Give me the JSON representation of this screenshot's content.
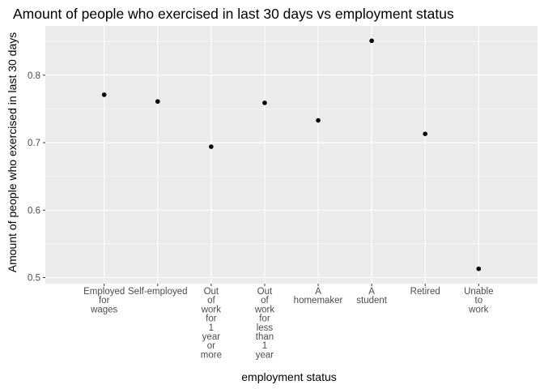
{
  "chart_data": {
    "type": "scatter",
    "title": "Amount of people who exercised in last 30 days vs employment status",
    "xlabel": "employment status",
    "ylabel": "Amount of people who exercised in last 30 days",
    "categories": [
      "Employed\nfor\nwages",
      "Self-employed",
      "Out\nof\nwork\nfor\n1\nyear\nor\nmore",
      "Out\nof\nwork\nfor\nless\nthan\n1\nyear",
      "A\nhomemaker",
      "A\nstudent",
      "Retired",
      "Unable\nto\nwork"
    ],
    "values": [
      0.771,
      0.761,
      0.694,
      0.759,
      0.733,
      0.851,
      0.713,
      0.513
    ],
    "ylim": [
      0.491,
      0.873
    ],
    "yticks": [
      0.5,
      0.6,
      0.7,
      0.8
    ],
    "ytick_labels": [
      "0.5",
      "0.6",
      "0.7",
      "0.8"
    ],
    "grid": true,
    "colors": {
      "panel": "#ebebeb",
      "grid_major": "#ffffff",
      "point": "#000000",
      "tick_text": "#4d4d4d"
    }
  }
}
